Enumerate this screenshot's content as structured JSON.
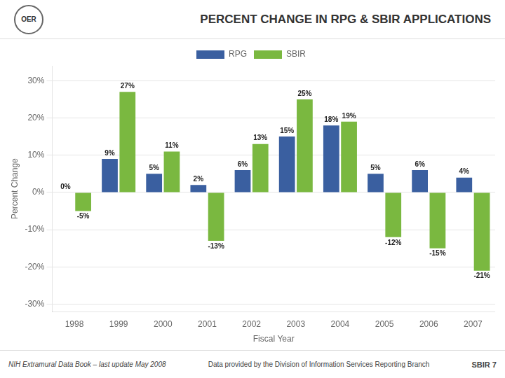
{
  "chart_data": {
    "type": "bar",
    "title": "PERCENT CHANGE IN RPG & SBIR APPLICATIONS",
    "x_label": "Fiscal Year",
    "y_label": "Percent Change",
    "categories": [
      "1998",
      "1999",
      "2000",
      "2001",
      "2002",
      "2003",
      "2004",
      "2005",
      "2006",
      "2007"
    ],
    "series": [
      {
        "name": "RPG",
        "color": "#3a5fa0",
        "values": [
          0,
          9,
          5,
          2,
          6,
          15,
          18,
          5,
          6,
          4
        ],
        "value_labels": [
          "0%",
          "9%",
          "5%",
          "2%",
          "6%",
          "15%",
          "18%",
          "5%",
          "6%",
          "4%"
        ]
      },
      {
        "name": "SBIR",
        "color": "#7ab840",
        "values": [
          -5,
          27,
          11,
          -13,
          13,
          25,
          19,
          -12,
          -15,
          -21
        ],
        "value_labels": [
          "-5%",
          "27%",
          "11%",
          "-13%",
          "13%",
          "25%",
          "19%",
          "-12%",
          "-15%",
          "-21%"
        ]
      }
    ],
    "ylim": [
      -32,
      34
    ],
    "yticks": [
      {
        "value": -30,
        "label": "-30%"
      },
      {
        "value": -20,
        "label": "-20%"
      },
      {
        "value": -10,
        "label": "-10%"
      },
      {
        "value": 0,
        "label": "0%"
      },
      {
        "value": 10,
        "label": "10%"
      },
      {
        "value": 20,
        "label": "20%"
      },
      {
        "value": 30,
        "label": "30%"
      }
    ],
    "grid": true,
    "legend": "top",
    "data_labels": true,
    "annotations": [
      "OER",
      "NIH Extramural Data Book – last update May 2008",
      "Data provided by the Division of Information Services  Reporting Branch",
      "SBIR 7"
    ]
  }
}
